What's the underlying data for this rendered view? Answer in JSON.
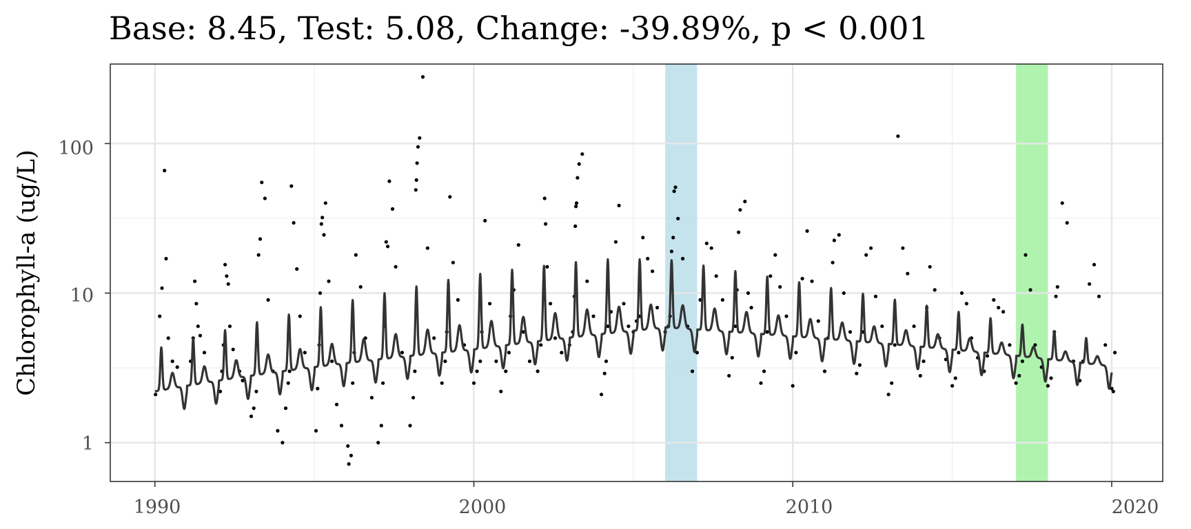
{
  "chart_data": {
    "type": "scatter",
    "title": "Base: 8.45, Test: 5.08, Change: -39.89%, p < 0.001",
    "xlabel": "",
    "ylabel": "Chlorophyll-a (ug/L)",
    "x_ticks": [
      "1990",
      "2000",
      "2010",
      "2020"
    ],
    "y_ticks": [
      "1",
      "10",
      "100"
    ],
    "xlim": [
      1988.6,
      2021.6
    ],
    "ylim": [
      0.55,
      340
    ],
    "y_scale": "log10",
    "grid": true,
    "highlight_bands": [
      {
        "name": "base",
        "x0": 2006.0,
        "x1": 2007.0,
        "color": "#add8e6"
      },
      {
        "name": "test",
        "x0": 2017.0,
        "x1": 2018.0,
        "color": "#90ee90"
      }
    ],
    "series": [
      {
        "type": "scatter",
        "color": "#000000",
        "x": [
          1990.02,
          1990.15,
          1990.22,
          1990.3,
          1990.35,
          1990.42,
          1990.55,
          1990.7,
          1991.12,
          1991.2,
          1991.25,
          1991.3,
          1991.35,
          1991.42,
          1991.55,
          1992.05,
          1992.1,
          1992.15,
          1992.2,
          1992.25,
          1992.3,
          1992.35,
          1992.45,
          1992.55,
          1992.65,
          1992.75,
          1993.02,
          1993.1,
          1993.18,
          1993.25,
          1993.3,
          1993.35,
          1993.45,
          1993.55,
          1993.7,
          1993.85,
          1994.0,
          1994.1,
          1994.18,
          1994.22,
          1994.28,
          1994.35,
          1994.45,
          1994.55,
          1994.7,
          1995.05,
          1995.1,
          1995.15,
          1995.18,
          1995.22,
          1995.25,
          1995.3,
          1995.35,
          1995.45,
          1995.55,
          1995.7,
          1995.85,
          1996.05,
          1996.08,
          1996.15,
          1996.2,
          1996.25,
          1996.3,
          1996.45,
          1996.6,
          1996.8,
          1997.0,
          1997.1,
          1997.15,
          1997.2,
          1997.25,
          1997.3,
          1997.35,
          1997.45,
          1997.55,
          1997.75,
          1998.0,
          1998.1,
          1998.15,
          1998.18,
          1998.2,
          1998.22,
          1998.25,
          1998.3,
          1998.4,
          1998.55,
          1998.75,
          1999.0,
          1999.1,
          1999.15,
          1999.25,
          1999.35,
          1999.5,
          1999.7,
          2000.0,
          2000.1,
          2000.2,
          2000.25,
          2000.35,
          2000.5,
          2000.7,
          2000.85,
          2001.0,
          2001.1,
          2001.15,
          2001.25,
          2001.4,
          2001.55,
          2001.75,
          2002.0,
          2002.1,
          2002.2,
          2002.22,
          2002.25,
          2002.3,
          2002.4,
          2002.55,
          2002.75,
          2003.0,
          2003.1,
          2003.15,
          2003.18,
          2003.2,
          2003.22,
          2003.25,
          2003.3,
          2003.4,
          2003.55,
          2003.75,
          2004.0,
          2004.1,
          2004.15,
          2004.2,
          2004.3,
          2004.45,
          2004.55,
          2004.7,
          2004.85,
          2005.0,
          2005.1,
          2005.2,
          2005.3,
          2005.45,
          2005.6,
          2005.75,
          2006.0,
          2006.1,
          2006.15,
          2006.2,
          2006.25,
          2006.28,
          2006.32,
          2006.4,
          2006.55,
          2006.7,
          2006.85,
          2007.0,
          2007.1,
          2007.2,
          2007.3,
          2007.45,
          2007.6,
          2007.8,
          2008.0,
          2008.1,
          2008.2,
          2008.25,
          2008.3,
          2008.35,
          2008.5,
          2008.6,
          2008.7,
          2009.0,
          2009.1,
          2009.2,
          2009.3,
          2009.45,
          2009.6,
          2009.8,
          2010.0,
          2010.1,
          2010.2,
          2010.3,
          2010.45,
          2010.6,
          2010.8,
          2011.0,
          2011.1,
          2011.2,
          2011.25,
          2011.3,
          2011.45,
          2011.6,
          2011.8,
          2012.0,
          2012.1,
          2012.2,
          2012.3,
          2012.45,
          2012.6,
          2012.8,
          2013.0,
          2013.1,
          2013.2,
          2013.3,
          2013.45,
          2013.6,
          2013.8,
          2014.0,
          2014.1,
          2014.2,
          2014.3,
          2014.45,
          2014.6,
          2014.8,
          2015.0,
          2015.1,
          2015.2,
          2015.3,
          2015.45,
          2015.6,
          2015.8,
          2016.0,
          2016.1,
          2016.2,
          2016.3,
          2016.45,
          2016.6,
          2016.8,
          2017.0,
          2017.1,
          2017.2,
          2017.3,
          2017.45,
          2017.6,
          2017.8,
          2018.0,
          2018.1,
          2018.2,
          2018.25,
          2018.3,
          2018.45,
          2018.6,
          2018.8,
          2019.0,
          2019.1,
          2019.2,
          2019.3,
          2019.45,
          2019.6,
          2019.8,
          2020.0,
          2020.05,
          2020.1
        ],
        "y": [
          2.1,
          7.0,
          10.8,
          66.0,
          17.0,
          5.0,
          3.5,
          3.2,
          3.5,
          5.0,
          12.0,
          8.5,
          6.0,
          5.2,
          4.0,
          2.2,
          3.0,
          4.5,
          15.5,
          13.0,
          11.5,
          6.0,
          4.2,
          3.5,
          3.0,
          2.6,
          1.5,
          1.7,
          2.2,
          18.0,
          23.0,
          55.0,
          43.0,
          9.0,
          3.0,
          1.2,
          1.0,
          1.7,
          2.5,
          3.0,
          52.0,
          29.5,
          14.5,
          7.0,
          4.0,
          1.2,
          2.3,
          4.5,
          10.0,
          29.0,
          32.0,
          24.5,
          40.0,
          12.0,
          3.5,
          1.8,
          1.3,
          0.95,
          0.72,
          0.82,
          2.5,
          4.0,
          18.0,
          11.0,
          5.0,
          2.0,
          1.0,
          1.3,
          2.5,
          6.0,
          22.0,
          20.5,
          56.0,
          36.5,
          15.0,
          4.0,
          1.3,
          2.0,
          3.0,
          49.0,
          57.0,
          74.0,
          95.0,
          109.0,
          279.0,
          20.0,
          5.0,
          2.5,
          3.5,
          5.5,
          44.0,
          16.0,
          9.0,
          4.5,
          2.5,
          3.0,
          3.5,
          5.5,
          30.5,
          8.5,
          3.5,
          2.2,
          3.0,
          4.0,
          7.0,
          10.5,
          21.0,
          5.5,
          3.5,
          3.0,
          4.5,
          9.0,
          43.0,
          29.0,
          15.0,
          8.5,
          5.0,
          4.0,
          4.5,
          5.5,
          9.5,
          28.0,
          38.0,
          40.0,
          59.0,
          73.0,
          85.0,
          12.0,
          7.0,
          2.1,
          2.9,
          3.5,
          6.0,
          7.5,
          22.0,
          38.5,
          8.5,
          6.0,
          5.5,
          6.5,
          7.0,
          23.5,
          17.0,
          14.0,
          8.0,
          5.5,
          6.0,
          7.0,
          19.0,
          23.5,
          48.0,
          51.0,
          31.5,
          17.0,
          6.0,
          3.0,
          4.0,
          9.0,
          11.5,
          21.5,
          20.0,
          13.0,
          9.0,
          2.8,
          3.7,
          6.0,
          10.5,
          25.5,
          36.0,
          41.0,
          10.0,
          8.0,
          2.5,
          3.0,
          5.5,
          13.0,
          18.0,
          11.0,
          7.0,
          2.4,
          4.0,
          9.5,
          12.5,
          26.0,
          12.0,
          6.5,
          3.0,
          5.0,
          9.0,
          16.0,
          22.5,
          24.5,
          10.0,
          5.5,
          2.9,
          3.3,
          5.5,
          18.0,
          20.0,
          9.5,
          6.0,
          2.1,
          2.5,
          4.5,
          112.0,
          20.0,
          13.5,
          6.0,
          2.8,
          3.5,
          8.0,
          15.0,
          10.5,
          5.0,
          3.6,
          2.4,
          2.7,
          4.0,
          10.0,
          8.5,
          5.0,
          3.7,
          3.0,
          3.8,
          5.5,
          9.0,
          8.0,
          7.5,
          4.5,
          2.5,
          2.8,
          3.5,
          18.0,
          10.5,
          4.5,
          3.2,
          2.4,
          2.7,
          5.5,
          9.5,
          11.0,
          40.0,
          29.5,
          3.5,
          2.6,
          3.5,
          4.5,
          11.5,
          15.5,
          9.5,
          4.5,
          2.3,
          2.2,
          4.0
        ]
      },
      {
        "type": "line",
        "color": "#333333",
        "x": [
          1990.0,
          2020.0
        ],
        "trend_note": "seasonal GAM fit"
      }
    ]
  }
}
